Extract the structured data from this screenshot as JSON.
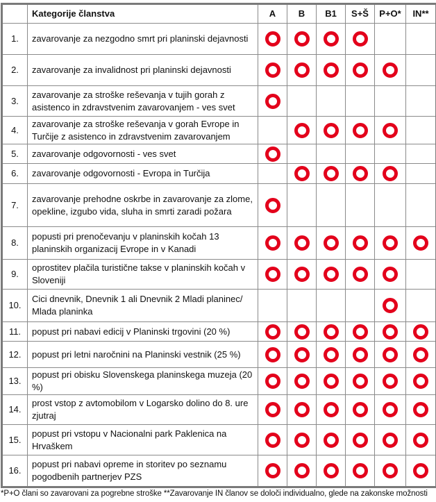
{
  "header": {
    "category": "Kategorije članstva",
    "columns": [
      "A",
      "B",
      "B1",
      "S+Š",
      "P+O*",
      "IN**"
    ]
  },
  "accent_color": "#e3001b",
  "mark_icon": "red-ring",
  "rows": [
    {
      "num": "1.",
      "text": "zavarovanje za nezgodno smrt pri planinski dejavnosti",
      "marks": [
        1,
        1,
        1,
        1,
        0,
        0
      ],
      "h": 45
    },
    {
      "num": "2.",
      "text": "zavarovanje za invalidnost pri planinski dejavnosti",
      "marks": [
        1,
        1,
        1,
        1,
        1,
        0
      ],
      "h": 45
    },
    {
      "num": "3.",
      "text": "zavarovanje za stroške reševanja v tujih gorah z asistenco in zdravstvenim zavarovanjem - ves svet",
      "marks": [
        1,
        0,
        0,
        0,
        0,
        0
      ],
      "h": 44
    },
    {
      "num": "4.",
      "text": "zavarovanje za stroške reševanja v gorah Evrope in Turčije z asistenco in zdravstvenim zavarovanjem",
      "marks": [
        0,
        1,
        1,
        1,
        1,
        0
      ],
      "h": 40
    },
    {
      "num": "5.",
      "text": "zavarovanje odgovornosti - ves svet",
      "marks": [
        1,
        0,
        0,
        0,
        0,
        0
      ],
      "h": 28
    },
    {
      "num": "6.",
      "text": "zavarovanje odgovornosti - Evropa in Turčija",
      "marks": [
        0,
        1,
        1,
        1,
        1,
        0
      ],
      "h": 29
    },
    {
      "num": "7.",
      "text": "zavarovanje prehodne oskrbe in zavarovanje za zlome, opekline, izgubo vida, sluha in smrti zaradi požara",
      "marks": [
        1,
        0,
        0,
        0,
        0,
        0
      ],
      "h": 62
    },
    {
      "num": "8.",
      "text": "popusti pri prenočevanju v planinskih kočah 13 planinskih organizacij Evrope in v Kanadi",
      "marks": [
        1,
        1,
        1,
        1,
        1,
        1
      ],
      "h": 47
    },
    {
      "num": "9.",
      "text": "oprostitev plačila turistične takse v planinskih kočah v Sloveniji",
      "marks": [
        1,
        1,
        1,
        1,
        1,
        0
      ],
      "h": 43
    },
    {
      "num": "10.",
      "text": "Cici dnevnik, Dnevnik 1 ali Dnevnik 2 Mladi planinec/ Mlada planinka",
      "marks": [
        0,
        0,
        0,
        0,
        1,
        0
      ],
      "h": 47
    },
    {
      "num": "11.",
      "text": "popust pri nabavi edicij v Planinski trgovini (20 %)",
      "marks": [
        1,
        1,
        1,
        1,
        1,
        1
      ],
      "h": 28
    },
    {
      "num": "12.",
      "text": "popust pri letni naročnini na Planinski vestnik (25 %)",
      "marks": [
        1,
        1,
        1,
        1,
        1,
        1
      ],
      "h": 38
    },
    {
      "num": "13.",
      "text": "popust pri obisku Slovenskega planinskega muzeja (20 %)",
      "marks": [
        1,
        1,
        1,
        1,
        1,
        1
      ],
      "h": 39
    },
    {
      "num": "14.",
      "text": "prost vstop z avtomobilom v Logarsko dolino do 8. ure zjutraj",
      "marks": [
        1,
        1,
        1,
        1,
        1,
        1
      ],
      "h": 43
    },
    {
      "num": "15.",
      "text": "popust pri vstopu v Nacionalni park Paklenica na Hrvaškem",
      "marks": [
        1,
        1,
        1,
        1,
        1,
        1
      ],
      "h": 44
    },
    {
      "num": "16.",
      "text": "popust pri nabavi opreme in storitev po seznamu pogodbenih partnerjev PZS",
      "marks": [
        1,
        1,
        1,
        1,
        1,
        1
      ],
      "h": 46
    }
  ],
  "footnote": "*P+O člani so zavarovani za pogrebne stroške **Zavarovanje IN članov se določi individualno, glede na zakonske možnosti"
}
